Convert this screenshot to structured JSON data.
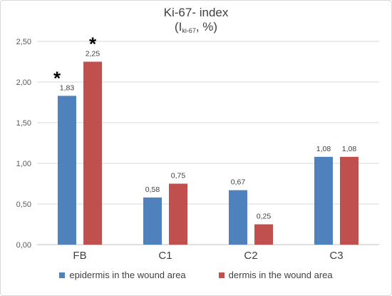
{
  "chart_data": {
    "type": "bar",
    "title_main": "Ki-67- index",
    "title_open": "(I",
    "title_sub": "ki-67",
    "title_close": ", %)",
    "categories": [
      "FB",
      "C1",
      "C2",
      "C3"
    ],
    "series": [
      {
        "name": "epidermis in the wound area",
        "color": "#4f81bd",
        "values": [
          1.83,
          0.58,
          0.67,
          1.08
        ],
        "labels": [
          "1,83",
          "0,58",
          "0,67",
          "1,08"
        ]
      },
      {
        "name": "dermis in the wound area",
        "color": "#c0504d",
        "values": [
          2.25,
          0.75,
          0.25,
          1.08
        ],
        "labels": [
          "2,25",
          "0,75",
          "0,25",
          "1,08"
        ]
      }
    ],
    "ylim": [
      0,
      2.5
    ],
    "yticks": [
      0,
      0.5,
      1.0,
      1.5,
      2.0,
      2.5
    ],
    "ytick_labels": [
      "0,00",
      "0,50",
      "1,00",
      "1,50",
      "2,00",
      "2,50"
    ],
    "annotations": [
      {
        "text": "*",
        "category": "FB",
        "series": 0
      },
      {
        "text": "*",
        "category": "FB",
        "series": 1
      }
    ],
    "grid": true,
    "legend_position": "bottom"
  }
}
